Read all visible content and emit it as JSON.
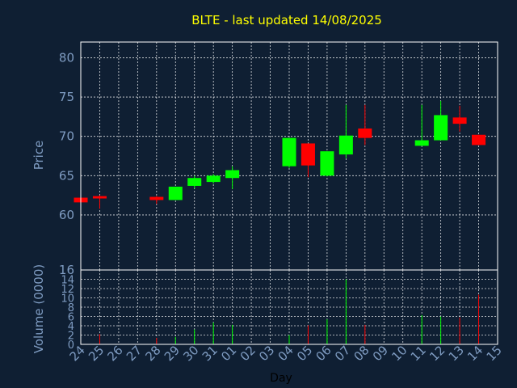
{
  "chart_data": {
    "type": "candlestick",
    "title": "BLTE - last updated 14/08/2025",
    "xlabel": "Day",
    "ylabel": "Price",
    "volume_label": "Volume (0000)",
    "grid": true,
    "colors": {
      "up": "#00ff00",
      "down": "#ff0000",
      "background": "#0f1f33",
      "axis_text": "#7f9cc2",
      "title": "#ffff00"
    },
    "price_ylim": [
      53,
      82
    ],
    "price_ticks": [
      60,
      65,
      70,
      75,
      80
    ],
    "volume_ylim": [
      0,
      16
    ],
    "volume_ticks": [
      0,
      2,
      4,
      6,
      8,
      10,
      12,
      14,
      16
    ],
    "x_range": [
      24,
      46
    ],
    "x_ticks": [
      {
        "x": 24,
        "label": "24"
      },
      {
        "x": 25,
        "label": "25"
      },
      {
        "x": 26,
        "label": "26"
      },
      {
        "x": 27,
        "label": "27"
      },
      {
        "x": 28,
        "label": "28"
      },
      {
        "x": 29,
        "label": "29"
      },
      {
        "x": 30,
        "label": "30"
      },
      {
        "x": 31,
        "label": "31"
      },
      {
        "x": 32,
        "label": "01"
      },
      {
        "x": 33,
        "label": "02"
      },
      {
        "x": 34,
        "label": "03"
      },
      {
        "x": 35,
        "label": "04"
      },
      {
        "x": 36,
        "label": "05"
      },
      {
        "x": 37,
        "label": "06"
      },
      {
        "x": 38,
        "label": "07"
      },
      {
        "x": 39,
        "label": "08"
      },
      {
        "x": 40,
        "label": "09"
      },
      {
        "x": 41,
        "label": "10"
      },
      {
        "x": 42,
        "label": "11"
      },
      {
        "x": 43,
        "label": "12"
      },
      {
        "x": 44,
        "label": "13"
      },
      {
        "x": 45,
        "label": "14"
      },
      {
        "x": 46,
        "label": "15"
      }
    ],
    "candles": [
      {
        "x": 24,
        "open": 62.2,
        "high": 62.2,
        "low": 61.5,
        "close": 61.6,
        "volume": 0.3
      },
      {
        "x": 25,
        "open": 62.4,
        "high": 62.5,
        "low": 60.8,
        "close": 62.1,
        "volume": 2.2
      },
      {
        "x": 28,
        "open": 62.3,
        "high": 62.4,
        "low": 61.4,
        "close": 61.9,
        "volume": 1.4
      },
      {
        "x": 29,
        "open": 61.9,
        "high": 63.6,
        "low": 61.9,
        "close": 63.6,
        "volume": 1.6
      },
      {
        "x": 30,
        "open": 63.7,
        "high": 65.0,
        "low": 63.4,
        "close": 64.7,
        "volume": 3.2
      },
      {
        "x": 31,
        "open": 64.2,
        "high": 65.2,
        "low": 64.0,
        "close": 65.0,
        "volume": 4.7
      },
      {
        "x": 32,
        "open": 64.7,
        "high": 66.2,
        "low": 63.3,
        "close": 65.7,
        "volume": 4.2
      },
      {
        "x": 35,
        "open": 66.2,
        "high": 69.8,
        "low": 66.0,
        "close": 69.8,
        "volume": 2.0
      },
      {
        "x": 36,
        "open": 69.1,
        "high": 69.1,
        "low": 64.8,
        "close": 66.3,
        "volume": 4.1
      },
      {
        "x": 37,
        "open": 65.0,
        "high": 68.1,
        "low": 64.9,
        "close": 68.1,
        "volume": 5.4
      },
      {
        "x": 38,
        "open": 67.7,
        "high": 74.0,
        "low": 67.2,
        "close": 70.1,
        "volume": 14.0
      },
      {
        "x": 39,
        "open": 71.0,
        "high": 74.0,
        "low": 68.9,
        "close": 69.8,
        "volume": 4.2
      },
      {
        "x": 42,
        "open": 68.8,
        "high": 74.0,
        "low": 68.8,
        "close": 69.5,
        "volume": 6.3
      },
      {
        "x": 43,
        "open": 69.5,
        "high": 74.5,
        "low": 69.5,
        "close": 72.7,
        "volume": 6.0
      },
      {
        "x": 44,
        "open": 72.4,
        "high": 73.9,
        "low": 70.6,
        "close": 71.6,
        "volume": 5.8
      },
      {
        "x": 45,
        "open": 70.2,
        "high": 70.2,
        "low": 68.9,
        "close": 68.9,
        "volume": 10.7
      }
    ]
  }
}
